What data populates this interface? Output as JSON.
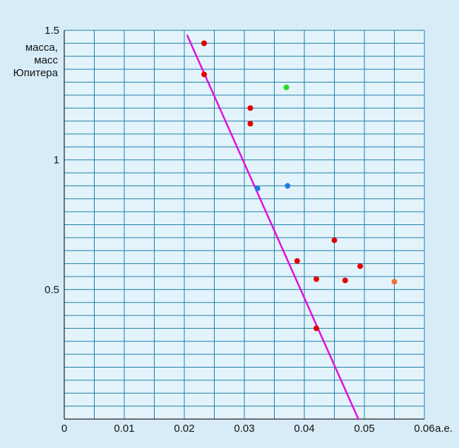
{
  "chart_data": {
    "type": "scatter",
    "title": "",
    "ylabel_lines": [
      "масса,",
      "масс",
      "Юпитера"
    ],
    "xunit": "а.е.",
    "xlim": [
      0,
      0.06
    ],
    "ylim": [
      0,
      1.5
    ],
    "x_ticks": [
      0,
      0.01,
      0.02,
      0.03,
      0.04,
      0.05,
      0.06
    ],
    "x_tick_labels": [
      "0",
      "0.01",
      "0.02",
      "0.03",
      "0.04",
      "0.05",
      "0.06"
    ],
    "y_ticks": [
      0.5,
      1,
      1.5
    ],
    "y_tick_labels": [
      "0.5",
      "1",
      "1.5"
    ],
    "grid": true,
    "grid_x_step": 0.005,
    "grid_y_step": 0.05,
    "colors": {
      "background": "#d7ecf7",
      "plot_background": "#e3f3fb",
      "grid": "#1f7fa8",
      "axis": "#222222",
      "trend_line": "#e010e0"
    },
    "points": [
      {
        "x": 0.0233,
        "y": 1.45,
        "color": "#e00000"
      },
      {
        "x": 0.0233,
        "y": 1.33,
        "color": "#e00000"
      },
      {
        "x": 0.031,
        "y": 1.2,
        "color": "#e00000"
      },
      {
        "x": 0.031,
        "y": 1.14,
        "color": "#e00000"
      },
      {
        "x": 0.037,
        "y": 1.28,
        "color": "#22dd22"
      },
      {
        "x": 0.0322,
        "y": 0.89,
        "color": "#1e7fe0"
      },
      {
        "x": 0.0372,
        "y": 0.9,
        "color": "#1e7fe0"
      },
      {
        "x": 0.045,
        "y": 0.69,
        "color": "#e00000"
      },
      {
        "x": 0.0388,
        "y": 0.61,
        "color": "#e00000"
      },
      {
        "x": 0.042,
        "y": 0.54,
        "color": "#e00000"
      },
      {
        "x": 0.0468,
        "y": 0.535,
        "color": "#e00000"
      },
      {
        "x": 0.0493,
        "y": 0.59,
        "color": "#e00000"
      },
      {
        "x": 0.055,
        "y": 0.53,
        "color": "#f07030"
      },
      {
        "x": 0.042,
        "y": 0.35,
        "color": "#e00000"
      }
    ],
    "trend_line": {
      "x": [
        0.0205,
        0.049
      ],
      "y": [
        1.48,
        0.0
      ]
    }
  }
}
